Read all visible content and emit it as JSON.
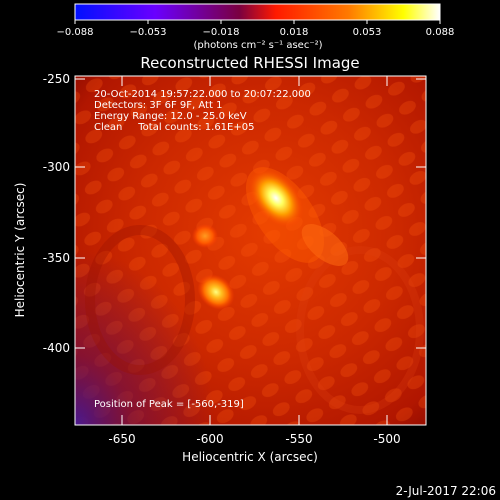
{
  "colorbar": {
    "ticks": [
      "−0.088",
      "−0.053",
      "−0.018",
      "0.018",
      "0.053",
      "0.088"
    ],
    "units": "(photons cm⁻² s⁻¹ asec⁻²)",
    "colors": [
      "#0010ff",
      "#6a00ff",
      "#9a0060",
      "#ff1a00",
      "#ff7a00",
      "#ffff00",
      "#ffffff"
    ]
  },
  "title": "Reconstructed RHESSI Image",
  "info": {
    "line1": "20-Oct-2014 19:57:22.000 to 20:07:22.000",
    "line2": "Detectors: 3F 6F 9F, Att 1",
    "line3": "Energy Range: 12.0 - 25.0 keV",
    "line4": "Clean     Total counts: 1.61E+05"
  },
  "peak_text": "Position of Peak = [-560,-319]",
  "axes": {
    "xlabel": "Heliocentric X (arcsec)",
    "ylabel": "Heliocentric Y (arcsec)",
    "xticks": [
      "-650",
      "-600",
      "-550",
      "-500"
    ],
    "yticks": [
      "-250",
      "-300",
      "-350",
      "-400"
    ]
  },
  "footer_date": "2-Jul-2017 22:06"
}
